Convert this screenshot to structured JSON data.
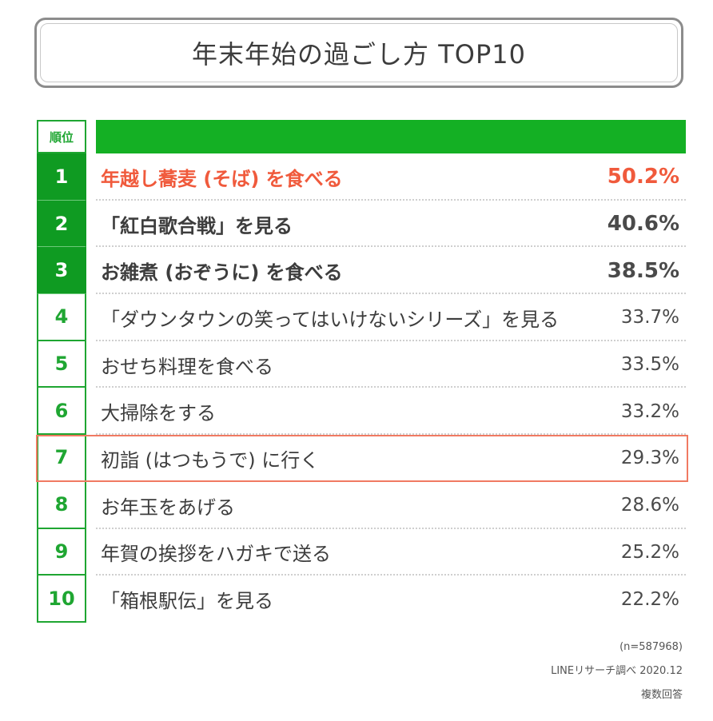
{
  "title": "年末年始の過ごし方 TOP10",
  "rank_header": "順位",
  "colors": {
    "green": "#14b024",
    "dark_green": "#0f9b22",
    "highlight_red": "#f05a3c"
  },
  "chart_data": {
    "type": "table",
    "title": "年末年始の過ごし方 TOP10",
    "columns": [
      "順位",
      "",
      ""
    ],
    "rows": [
      {
        "rank": "1",
        "label": "年越し蕎麦 (そば) を食べる",
        "value": "50.2%"
      },
      {
        "rank": "2",
        "label": "「紅白歌合戦」を見る",
        "value": "40.6%"
      },
      {
        "rank": "3",
        "label": "お雑煮 (おぞうに) を食べる",
        "value": "38.5%"
      },
      {
        "rank": "4",
        "label": "「ダウンタウンの笑ってはいけないシリーズ」を見る",
        "value": "33.7%"
      },
      {
        "rank": "5",
        "label": "おせち料理を食べる",
        "value": "33.5%"
      },
      {
        "rank": "6",
        "label": "大掃除をする",
        "value": "33.2%"
      },
      {
        "rank": "7",
        "label": "初詣 (はつもうで) に行く",
        "value": "29.3%"
      },
      {
        "rank": "8",
        "label": "お年玉をあげる",
        "value": "28.6%"
      },
      {
        "rank": "9",
        "label": "年賀の挨拶をハガキで送る",
        "value": "25.2%"
      },
      {
        "rank": "10",
        "label": "「箱根駅伝」を見る",
        "value": "22.2%"
      }
    ]
  },
  "notes": {
    "sample": "(n=587968)",
    "source": "LINEリサーチ調べ 2020.12",
    "answer_type": "複数回答"
  }
}
